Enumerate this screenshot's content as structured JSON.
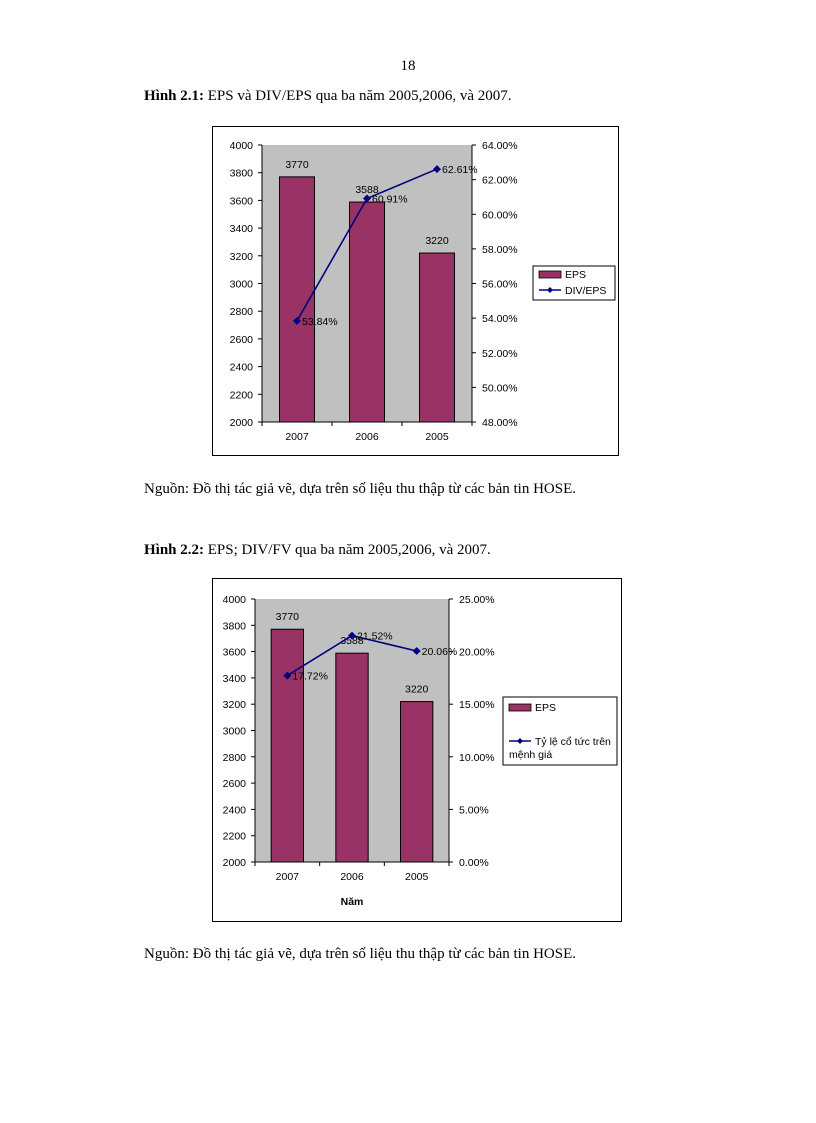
{
  "page": {
    "number": "18"
  },
  "figure1": {
    "label": "Hình 2.1:",
    "caption": " EPS và DIV/EPS qua ba năm 2005,2006, và 2007.",
    "source": "Nguồn: Đồ thị tác giả vẽ, dựa trên số liệu thu thập từ các bản tin HOSE."
  },
  "figure2": {
    "label": "Hình 2.2:",
    "caption": " EPS; DIV/FV qua ba năm 2005,2006, và 2007.",
    "source": "Nguồn: Đồ thị tác giả vẽ, dựa trên số liệu thu thập từ các bản tin HOSE."
  },
  "colors": {
    "bar": "#993366",
    "line": "#000080",
    "plot_bg": "#c0c0c0",
    "axis": "#000000"
  },
  "chart_data": [
    {
      "type": "bar+line",
      "title": "",
      "categories": [
        "2007",
        "2006",
        "2005"
      ],
      "series": [
        {
          "name": "EPS",
          "type": "bar",
          "axis": "left",
          "values": [
            3770,
            3588,
            3220
          ],
          "labels": [
            "3770",
            "3588",
            "3220"
          ]
        },
        {
          "name": "DIV/EPS",
          "type": "line",
          "axis": "right",
          "values": [
            53.84,
            60.91,
            62.61
          ],
          "labels": [
            "53.84%",
            "60.91%",
            "62.61%"
          ]
        }
      ],
      "y_left": {
        "min": 2000,
        "max": 4000,
        "step": 200,
        "ticks": [
          "2000",
          "2200",
          "2400",
          "2600",
          "2800",
          "3000",
          "3200",
          "3400",
          "3600",
          "3800",
          "4000"
        ]
      },
      "y_right": {
        "min": 48,
        "max": 64,
        "step": 2,
        "ticks": [
          "48.00%",
          "50.00%",
          "52.00%",
          "54.00%",
          "56.00%",
          "58.00%",
          "60.00%",
          "62.00%",
          "64.00%"
        ]
      },
      "xlabel": "",
      "ylabel": "",
      "legend": [
        "EPS",
        "DIV/EPS"
      ],
      "legend_position": "right",
      "grid": false
    },
    {
      "type": "bar+line",
      "title": "",
      "categories": [
        "2007",
        "2006",
        "2005"
      ],
      "series": [
        {
          "name": "EPS",
          "type": "bar",
          "axis": "left",
          "values": [
            3770,
            3588,
            3220
          ],
          "labels": [
            "3770",
            "3588",
            "3220"
          ]
        },
        {
          "name": "Tỷ lệ cổ tức trên mệnh giá",
          "type": "line",
          "axis": "right",
          "values": [
            17.72,
            21.52,
            20.06
          ],
          "labels": [
            "17.72%",
            "21.52%",
            "20.06%"
          ]
        }
      ],
      "y_left": {
        "min": 2000,
        "max": 4000,
        "step": 200,
        "ticks": [
          "2000",
          "2200",
          "2400",
          "2600",
          "2800",
          "3000",
          "3200",
          "3400",
          "3600",
          "3800",
          "4000"
        ]
      },
      "y_right": {
        "min": 0,
        "max": 25,
        "step": 5,
        "ticks": [
          "0.00%",
          "5.00%",
          "10.00%",
          "15.00%",
          "20.00%",
          "25.00%"
        ]
      },
      "xlabel": "Năm",
      "ylabel": "",
      "legend": [
        "EPS",
        "Tỷ lệ cổ tức trên",
        "mệnh giá"
      ],
      "legend_position": "right",
      "grid": false
    }
  ]
}
